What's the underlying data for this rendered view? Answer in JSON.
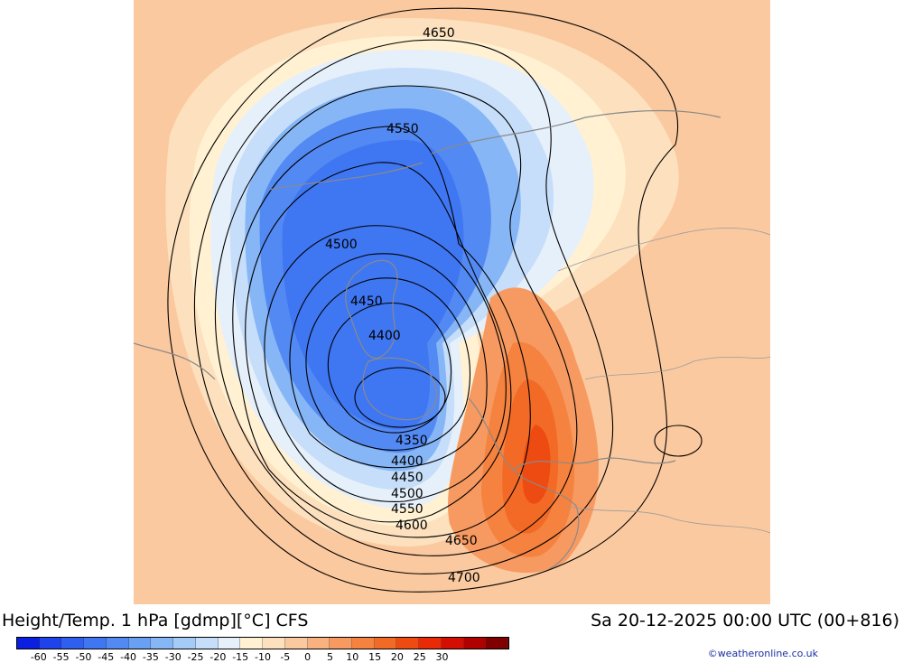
{
  "title_left": "Height/Temp. 1 hPa [gdmp][°C] CFS",
  "title_right": "Sa 20-12-2025 00:00 UTC (00+816)",
  "credit": "©weatheronline.co.uk",
  "colorbar": {
    "colors": [
      "#0a1fe0",
      "#1f43ea",
      "#2f5ff0",
      "#3f76f2",
      "#5389f2",
      "#6aa0f4",
      "#86b6f6",
      "#a5cbf7",
      "#c6def9",
      "#e6f0fb",
      "#fff1d2",
      "#fde0bd",
      "#fbc99f",
      "#f9b27f",
      "#f79a61",
      "#f5823f",
      "#f26a26",
      "#ee4b12",
      "#e82a06",
      "#d40e02",
      "#b00000",
      "#800000"
    ],
    "labels": [
      "-60",
      "-55",
      "-50",
      "-45",
      "-40",
      "-35",
      "-30",
      "-25",
      "-20",
      "-15",
      "-10",
      "-5",
      "0",
      "5",
      "10",
      "15",
      "20",
      "25",
      "30"
    ]
  },
  "contour_labels": [
    "4650",
    "4550",
    "4500",
    "4450",
    "4400",
    "4350",
    "4400",
    "4450",
    "4500",
    "4550",
    "4600",
    "4650",
    "4700"
  ]
}
